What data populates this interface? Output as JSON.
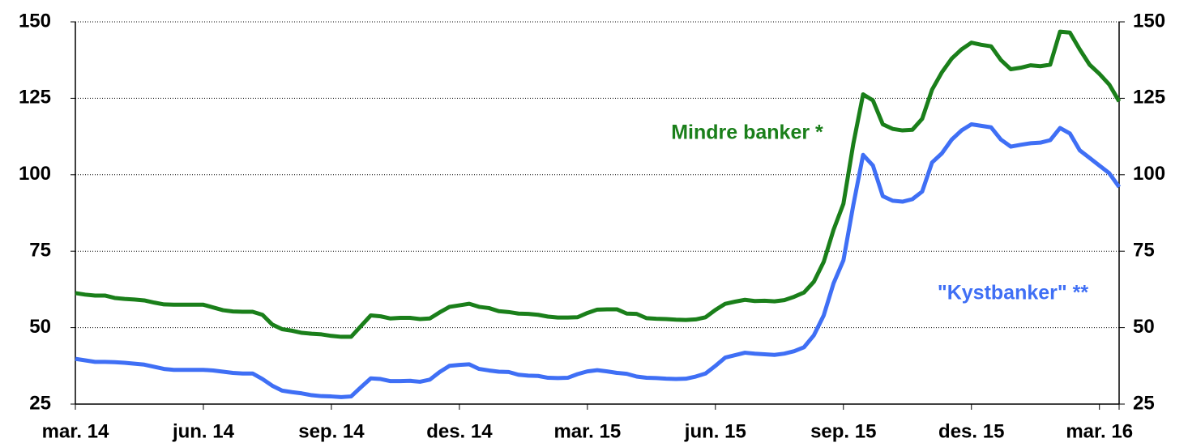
{
  "chart_data": {
    "type": "line",
    "categories": [
      "mar. 14",
      null,
      null,
      null,
      null,
      null,
      null,
      null,
      null,
      null,
      null,
      null,
      null,
      "jun. 14",
      null,
      null,
      null,
      null,
      null,
      null,
      null,
      null,
      null,
      null,
      null,
      null,
      "sep. 14",
      null,
      null,
      null,
      null,
      null,
      null,
      null,
      null,
      null,
      null,
      null,
      null,
      "des. 14",
      null,
      null,
      null,
      null,
      null,
      null,
      null,
      null,
      null,
      null,
      null,
      null,
      "mar. 15",
      null,
      null,
      null,
      null,
      null,
      null,
      null,
      null,
      null,
      null,
      null,
      null,
      "jun. 15",
      null,
      null,
      null,
      null,
      null,
      null,
      null,
      null,
      null,
      null,
      null,
      null,
      "sep. 15",
      null,
      null,
      null,
      null,
      null,
      null,
      null,
      null,
      null,
      null,
      null,
      null,
      "des. 15",
      null,
      null,
      null,
      null,
      null,
      null,
      null,
      null,
      null,
      null,
      null,
      null,
      "mar. 16",
      null,
      null
    ],
    "series": [
      {
        "name": "Mindre banker *",
        "color": "#1a7f1a",
        "values": [
          61.3,
          60.8,
          60.5,
          60.5,
          59.7,
          59.4,
          59.2,
          58.9,
          58.2,
          57.6,
          57.5,
          57.5,
          57.5,
          57.5,
          56.6,
          55.7,
          55.3,
          55.2,
          55.2,
          54.2,
          51,
          49.5,
          49,
          48.3,
          48,
          47.8,
          47.3,
          47,
          47,
          50.5,
          54,
          53.7,
          53,
          53.2,
          53.2,
          52.8,
          53,
          55,
          56.8,
          57.3,
          57.8,
          56.8,
          56.4,
          55.4,
          55.1,
          54.6,
          54.5,
          54.2,
          53.6,
          53.3,
          53.3,
          53.4,
          54.8,
          55.9,
          56,
          56,
          54.6,
          54.5,
          53.1,
          52.9,
          52.8,
          52.6,
          52.5,
          52.7,
          53.4,
          55.8,
          57.8,
          58.5,
          59.1,
          58.7,
          58.8,
          58.6,
          59,
          60.1,
          61.5,
          65,
          71.5,
          82,
          90.5,
          110,
          126.3,
          124.3,
          116.5,
          115,
          114.5,
          114.7,
          118.3,
          127.8,
          133.5,
          138,
          141,
          143.2,
          142.5,
          142,
          137.5,
          134.5,
          135,
          135.8,
          135.5,
          136,
          146.8,
          146.5,
          141,
          136,
          133,
          129.5,
          124
        ]
      },
      {
        "name": "\"Kystbanker\" **",
        "color": "#3f6ff5",
        "values": [
          39.8,
          39.3,
          38.8,
          38.8,
          38.7,
          38.5,
          38.2,
          37.9,
          37.2,
          36.5,
          36.2,
          36.2,
          36.2,
          36.2,
          36,
          35.6,
          35.2,
          35,
          35,
          33.2,
          31,
          29.4,
          28.9,
          28.5,
          27.9,
          27.6,
          27.5,
          27.3,
          27.5,
          30.5,
          33.4,
          33.2,
          32.5,
          32.5,
          32.6,
          32.3,
          33,
          35.5,
          37.5,
          37.8,
          38,
          36.5,
          36,
          35.6,
          35.5,
          34.6,
          34.3,
          34.2,
          33.6,
          33.5,
          33.6,
          34.8,
          35.7,
          36.1,
          35.7,
          35.2,
          34.9,
          34,
          33.6,
          33.5,
          33.3,
          33.2,
          33.3,
          34,
          35,
          37.5,
          40.2,
          41,
          41.8,
          41.5,
          41.3,
          41.1,
          41.5,
          42.3,
          43.6,
          47.5,
          54,
          64.5,
          72,
          90,
          106.5,
          103,
          93,
          91.5,
          91.2,
          92,
          94.5,
          104,
          107,
          111.5,
          114.5,
          116.5,
          116,
          115.5,
          111.5,
          109.2,
          109.8,
          110.3,
          110.5,
          111.3,
          115.3,
          113.5,
          108,
          105.5,
          103,
          100.5,
          96
        ]
      }
    ],
    "ylim": [
      25,
      150
    ],
    "yticks": [
      25,
      50,
      75,
      100,
      125,
      150
    ],
    "y2lim": [
      25,
      150
    ],
    "y2ticks": [
      25,
      50,
      75,
      100,
      125,
      150
    ],
    "grid": true
  }
}
